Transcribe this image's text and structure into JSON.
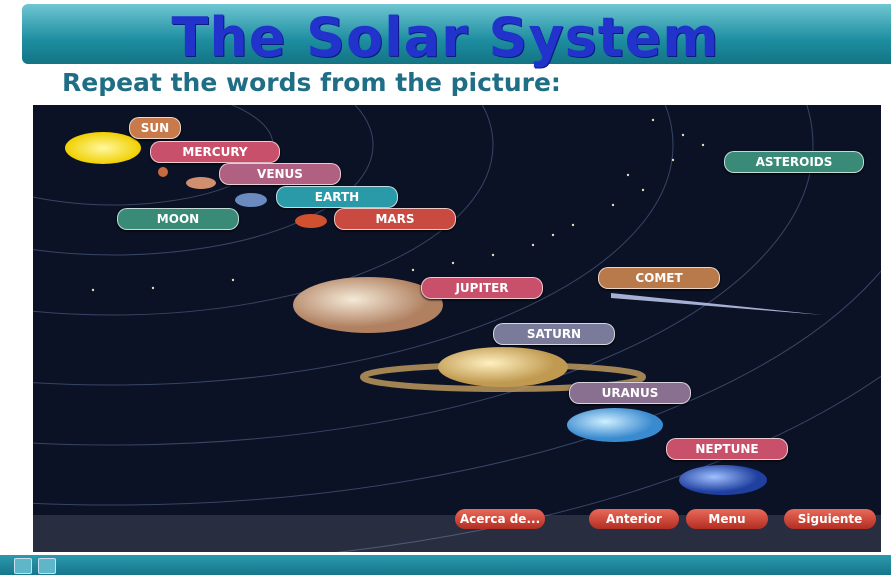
{
  "header": {
    "title": "The Solar System",
    "instruction": "Repeat the words from the picture:"
  },
  "labels": [
    "SUN",
    "MERCURY",
    "VENUS",
    "EARTH",
    "MOON",
    "MARS",
    "ASTEROIDS",
    "JUPITER",
    "COMET",
    "SATURN",
    "URANUS",
    "NEPTUNE"
  ],
  "navigation": [
    "Acerca de...",
    "Anterior",
    "Menu",
    "Siguiente"
  ]
}
